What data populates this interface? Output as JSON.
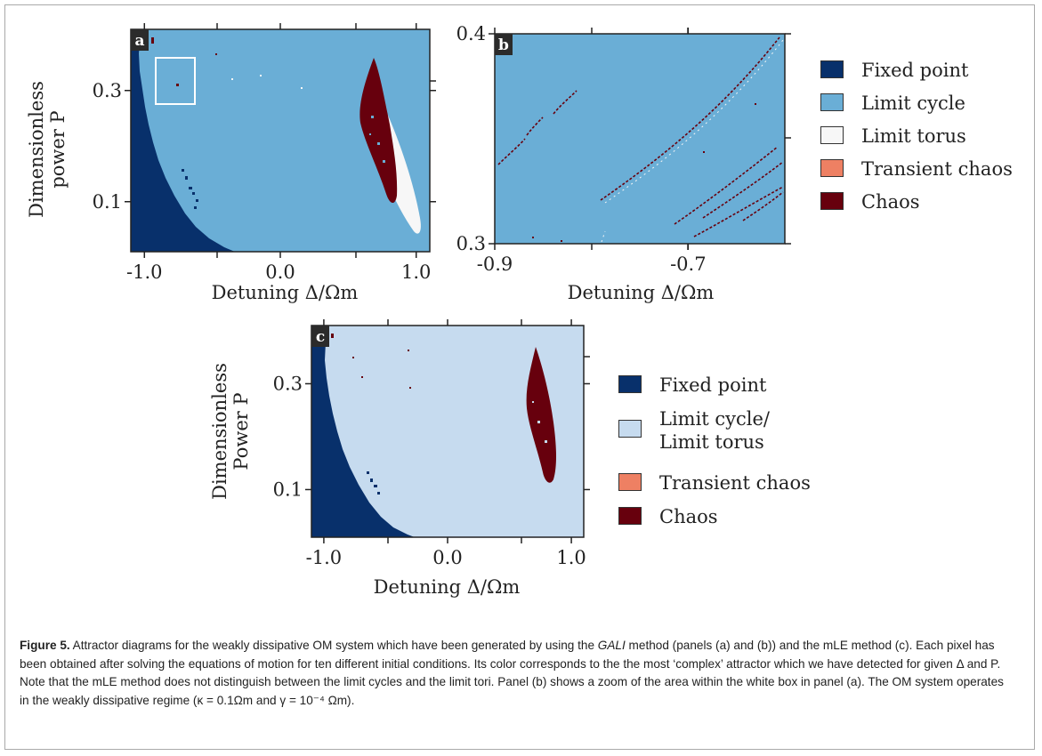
{
  "colors": {
    "fixed_point": "#08306b",
    "limit_cycle": "#6aaed6",
    "limit_torus": "#f7f7f7",
    "transient_chaos": "#ee8063",
    "chaos": "#67000d",
    "merged_cycle_torus": "#c6dbef",
    "zoom_box": "#ffffff"
  },
  "chart_data": [
    {
      "type": "heatmap",
      "panel_label": "a",
      "xlabel": "Detuning Δ/Ωm",
      "ylabel_line1": "Dimensionless",
      "ylabel_line2": "power P",
      "xlim": [
        -1.1,
        1.1
      ],
      "ylim": [
        0.01,
        0.41
      ],
      "xticks": [
        -1.0,
        0.0,
        1.0
      ],
      "xtick_labels": [
        "-1.0",
        "0.0",
        "1.0"
      ],
      "yticks": [
        0.1,
        0.3
      ],
      "ytick_labels": [
        "0.1",
        "0.3"
      ],
      "background_class": "Limit cycle",
      "regions": [
        {
          "class": "Fixed point",
          "description_boundary_x_at_p": [
            [
              0.01,
              -0.38
            ],
            [
              0.1,
              -0.62
            ],
            [
              0.2,
              -0.8
            ],
            [
              0.3,
              -0.93
            ],
            [
              0.41,
              -1.02
            ]
          ]
        },
        {
          "class": "Limit torus",
          "center": [
            0.72,
            0.18
          ],
          "extent": "elongated ellipse from Δ≈0.55 to 0.88"
        },
        {
          "class": "Chaos",
          "center": [
            0.68,
            0.3
          ],
          "extent": "elongated ellipse from Δ≈0.55 to 0.75"
        }
      ],
      "zoom_box": {
        "x": [
          -0.9,
          -0.6
        ],
        "y": [
          0.3,
          0.4
        ]
      }
    },
    {
      "type": "heatmap",
      "panel_label": "b",
      "xlabel": "Detuning Δ/Ωm",
      "xlim": [
        -0.9,
        -0.6
      ],
      "ylim": [
        0.3,
        0.4
      ],
      "xticks": [
        -0.9,
        -0.7
      ],
      "xtick_labels": [
        "-0.9",
        "-0.7"
      ],
      "yticks": [
        0.3,
        0.4
      ],
      "ytick_labels": [
        "0.3",
        "0.4"
      ],
      "background_class": "Limit cycle"
    },
    {
      "type": "heatmap",
      "panel_label": "c",
      "xlabel": "Detuning Δ/Ωm",
      "ylabel_line1": "Dimensionless",
      "ylabel_line2": "Power P",
      "xlim": [
        -1.1,
        1.1
      ],
      "ylim": [
        0.01,
        0.41
      ],
      "xticks": [
        -1.0,
        0.0,
        1.0
      ],
      "xtick_labels": [
        "-1.0",
        "0.0",
        "1.0"
      ],
      "yticks": [
        0.1,
        0.3
      ],
      "ytick_labels": [
        "0.1",
        "0.3"
      ],
      "background_class": "Limit cycle/ Limit torus"
    }
  ],
  "legend_top": [
    {
      "label": "Fixed point",
      "color": "#08306b"
    },
    {
      "label": "Limit cycle",
      "color": "#6aaed6"
    },
    {
      "label": "Limit torus",
      "color": "#f7f7f7"
    },
    {
      "label": "Transient chaos",
      "color": "#ee8063"
    },
    {
      "label": "Chaos",
      "color": "#67000d"
    }
  ],
  "legend_bottom": [
    {
      "label": "Fixed point",
      "color": "#08306b"
    },
    {
      "label": "Limit cycle/",
      "label2": "Limit torus",
      "color": "#c6dbef"
    },
    {
      "label": "Transient chaos",
      "color": "#ee8063"
    },
    {
      "label": "Chaos",
      "color": "#67000d"
    }
  ],
  "caption": {
    "figure_label": "Figure 5.",
    "text_1": " Attractor diagrams for the weakly dissipative OM system which have been generated by using the ",
    "gali": "GALI",
    "text_2": " method (panels (a) and (b)) and the mLE method (c). Each pixel has been obtained after solving the equations of motion for ten different initial conditions. Its color corresponds to the the most ‘complex’ attractor which we have detected for given Δ and P. Note that the mLE method does not distinguish between the limit cycles and the limit tori. Panel (b) shows a zoom of the area within the white box in panel (a). The OM system operates in the weakly dissipative regime (κ = 0.1Ωm and γ = 10⁻⁴ Ωm)."
  }
}
